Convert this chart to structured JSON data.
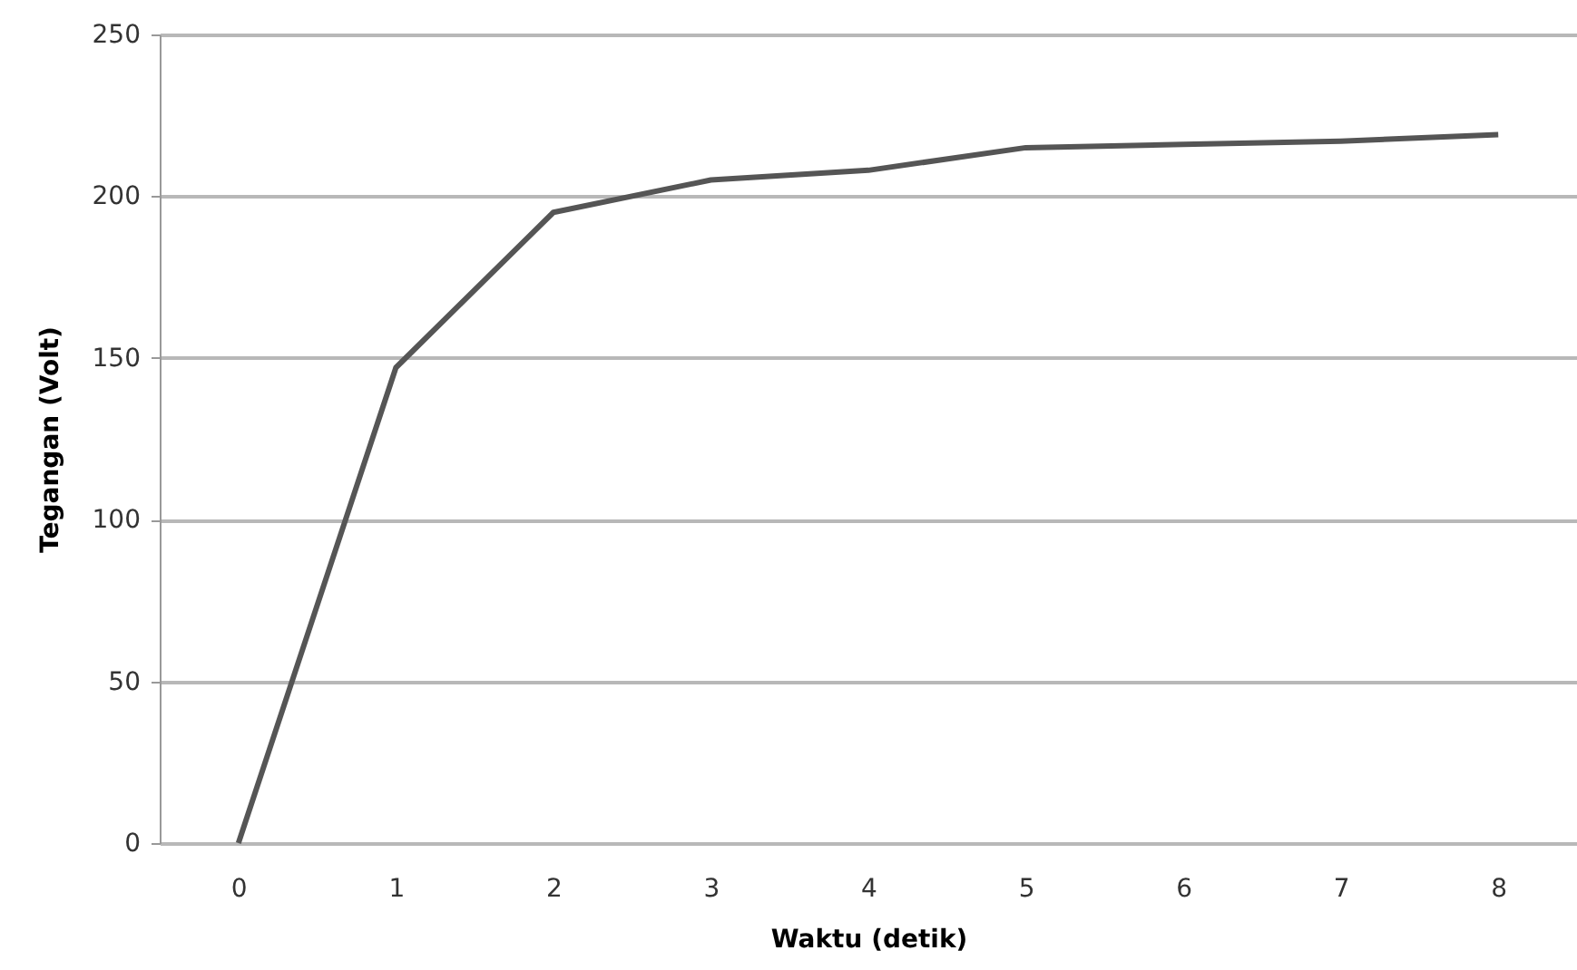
{
  "chart_data": {
    "type": "line",
    "xlabel": "Waktu (detik)",
    "ylabel": "Tegangan (Volt)",
    "categories": [
      "0",
      "1",
      "2",
      "3",
      "4",
      "5",
      "6",
      "7",
      "8"
    ],
    "series": [
      {
        "color": "#555555",
        "values": [
          0,
          147,
          195,
          205,
          208,
          215,
          216,
          217,
          219
        ]
      }
    ],
    "ylim": [
      0,
      250
    ],
    "yticks": [
      0,
      50,
      100,
      150,
      200,
      250
    ],
    "grid": "y",
    "marker": "none",
    "line_style": "solid"
  }
}
